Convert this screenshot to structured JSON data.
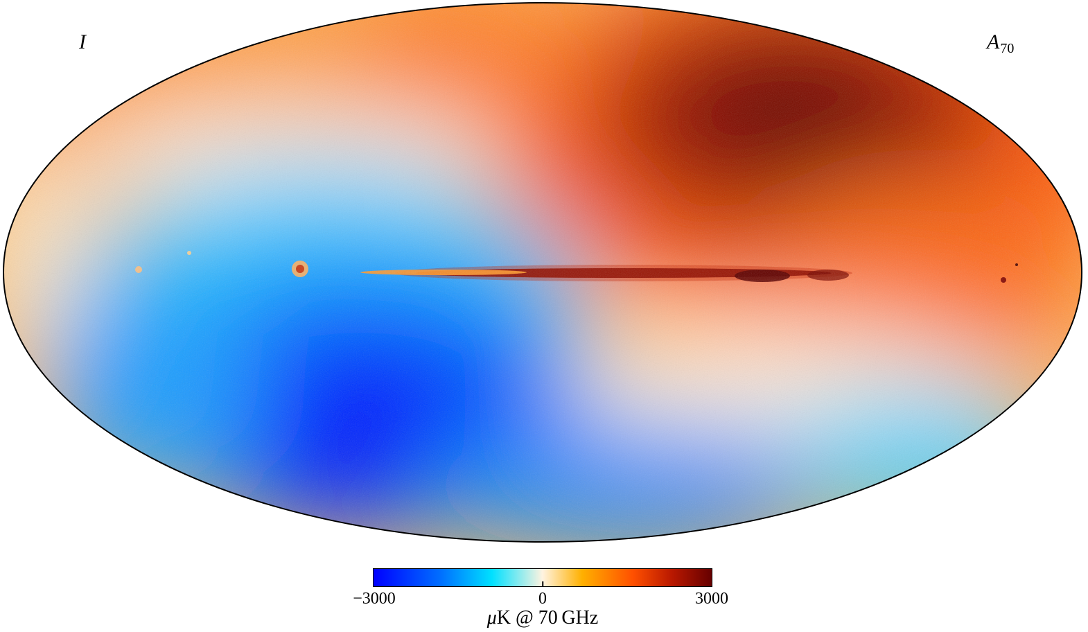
{
  "map": {
    "projection": "Mollweide",
    "stokes_label": "I",
    "component_label": "A",
    "component_subscript": "70",
    "feature": "Galactic plane emission",
    "colors": {
      "cold": "#0000ff",
      "mid": "#fff3e0",
      "hot": "#660000",
      "outline": "#000000"
    }
  },
  "colorbar": {
    "min": -3000,
    "max": 3000,
    "ticks": [
      {
        "value": -3000,
        "label": "−3000"
      },
      {
        "value": 0,
        "label": "0"
      },
      {
        "value": 3000,
        "label": "3000"
      }
    ],
    "unit_prefix": "μ",
    "unit_rest": "K @ 70 GHz",
    "stops": [
      {
        "value": -3000,
        "color": "#0000ff"
      },
      {
        "value": -1800,
        "color": "#0070ff"
      },
      {
        "value": -900,
        "color": "#00e0ff"
      },
      {
        "value": 0,
        "color": "#fff3e0"
      },
      {
        "value": 700,
        "color": "#ffb000"
      },
      {
        "value": 1600,
        "color": "#ff5000"
      },
      {
        "value": 2300,
        "color": "#b81800"
      },
      {
        "value": 3000,
        "color": "#660000"
      }
    ]
  }
}
